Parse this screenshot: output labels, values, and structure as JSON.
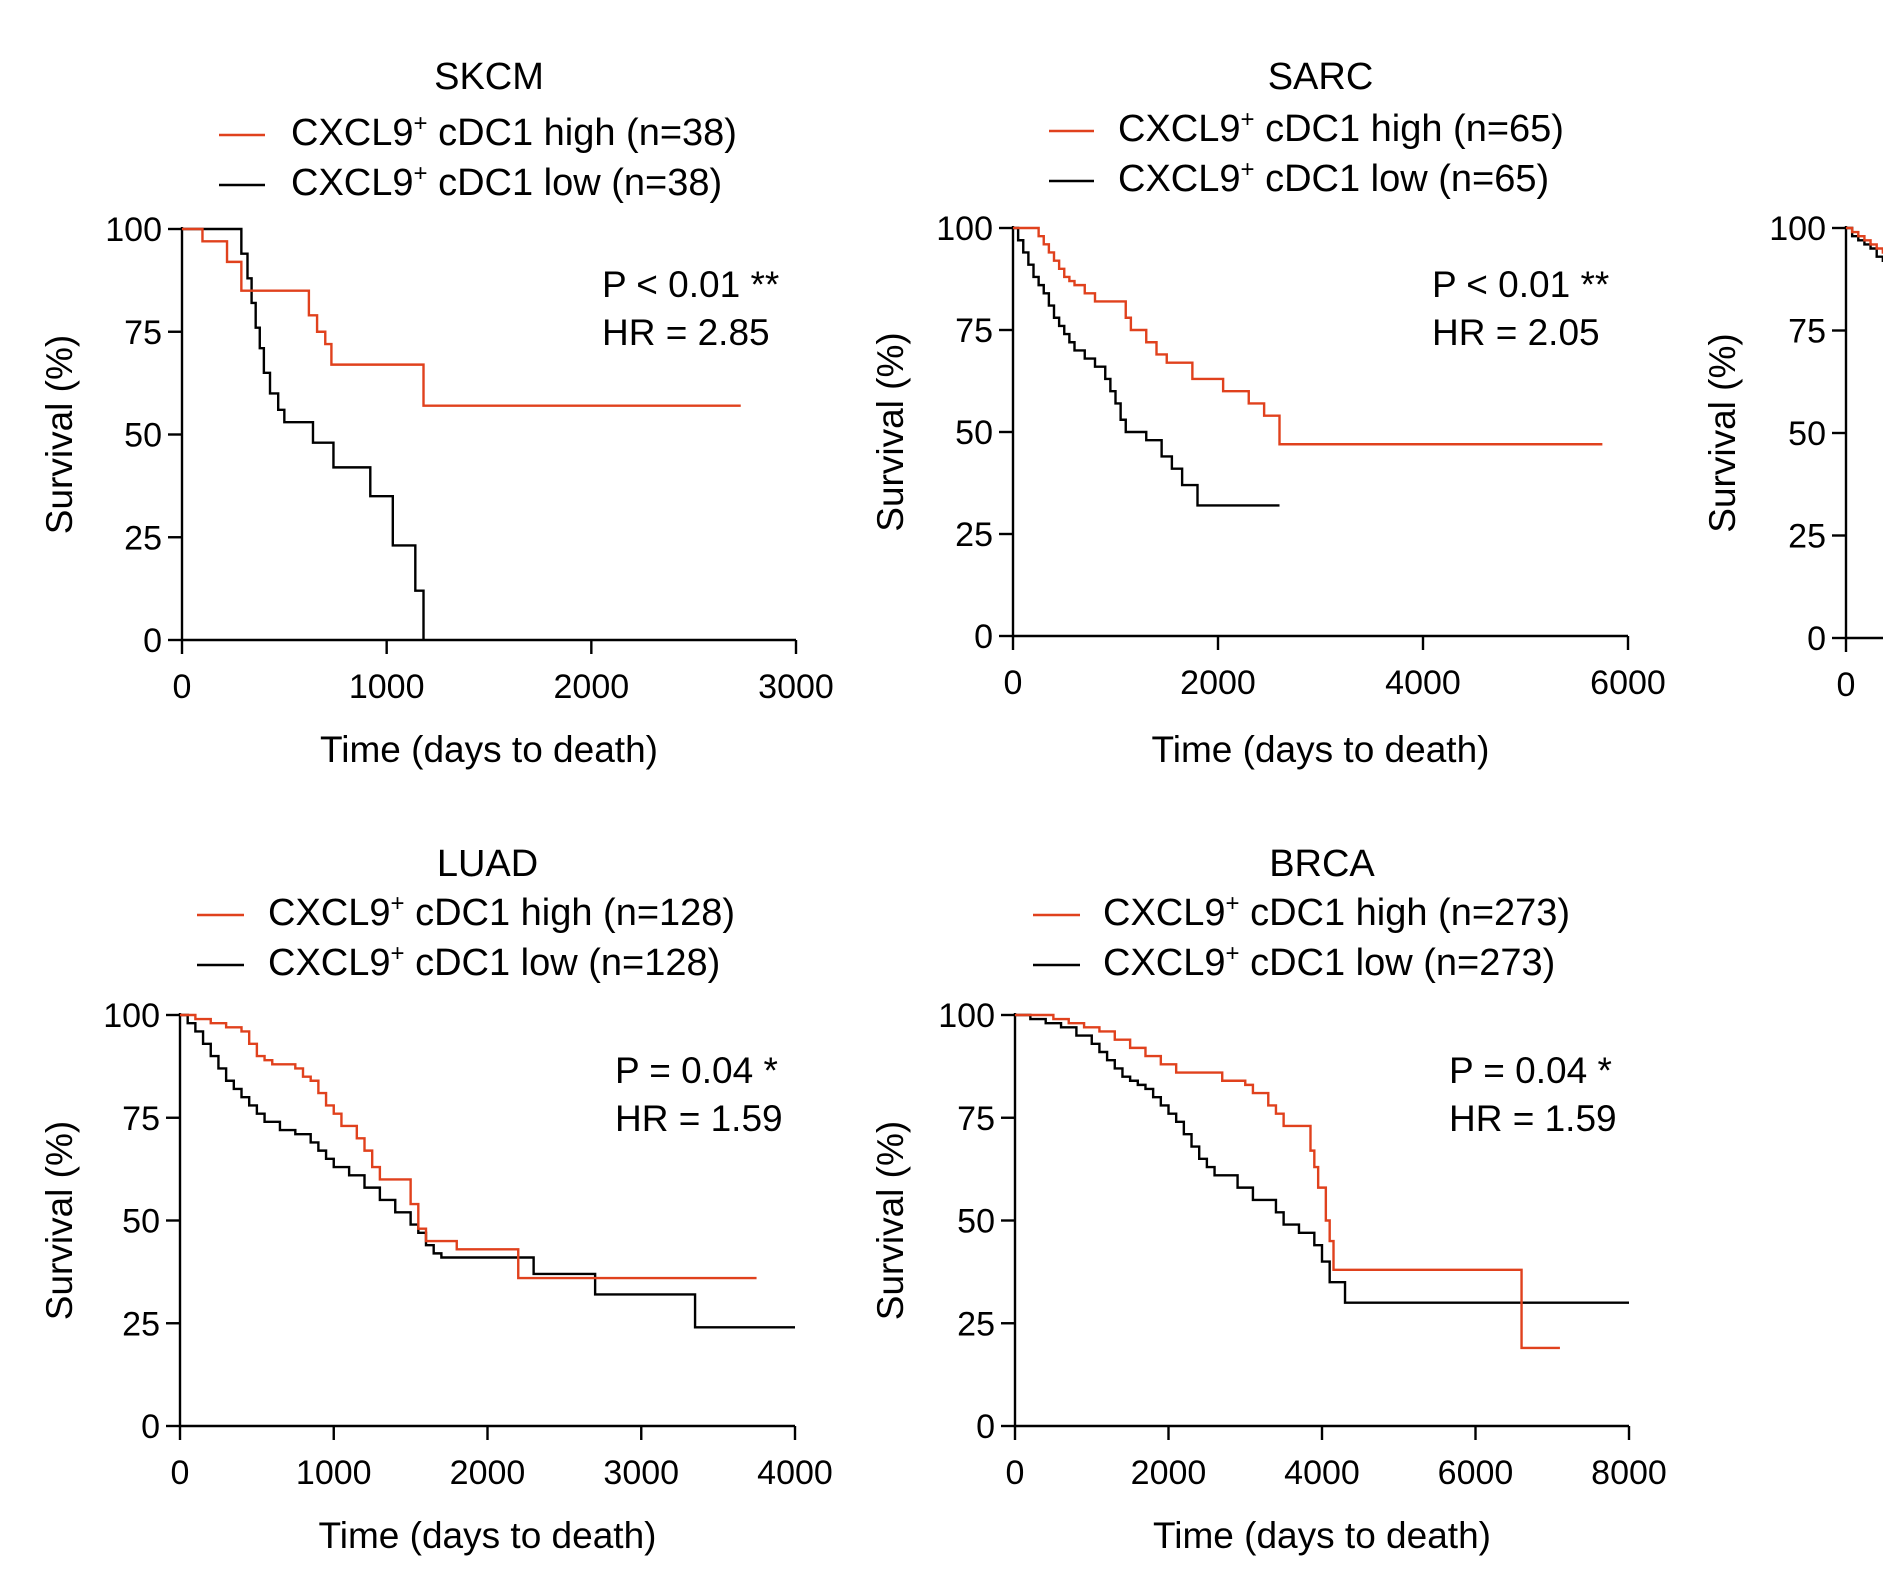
{
  "colors": {
    "high": "#e0411d",
    "low": "#000000",
    "axis": "#000000"
  },
  "chart_data": [
    {
      "type": "line",
      "title": "SKCM",
      "xlabel": "Time (days to death)",
      "ylabel": "Survival (%)",
      "xlim": [
        0,
        3000
      ],
      "ylim": [
        0,
        100
      ],
      "xticks": [
        0,
        1000,
        2000,
        3000
      ],
      "yticks": [
        0,
        25,
        50,
        75,
        100
      ],
      "stat_line1": "P < 0.01 **",
      "stat_line2": "HR = 2.85",
      "series": [
        {
          "key": "high",
          "name": "CXCL9+ cDC1 high (n=38)",
          "name_prefix": "CXCL9",
          "name_sup": "+",
          "name_suffix": " cDC1 high (n=38)",
          "steps": [
            [
              0,
              100
            ],
            [
              100,
              97
            ],
            [
              220,
              92
            ],
            [
              290,
              85
            ],
            [
              580,
              85
            ],
            [
              620,
              79
            ],
            [
              660,
              75
            ],
            [
              700,
              72
            ],
            [
              730,
              67
            ],
            [
              1180,
              67
            ],
            [
              1180,
              57
            ],
            [
              2730,
              57
            ]
          ]
        },
        {
          "key": "low",
          "name": "CXCL9+ cDC1 low (n=38)",
          "name_prefix": "CXCL9",
          "name_sup": "+",
          "name_suffix": " cDC1 low (n=38)",
          "steps": [
            [
              0,
              100
            ],
            [
              270,
              100
            ],
            [
              290,
              94
            ],
            [
              320,
              88
            ],
            [
              340,
              82
            ],
            [
              360,
              76
            ],
            [
              380,
              71
            ],
            [
              400,
              65
            ],
            [
              430,
              60
            ],
            [
              470,
              56
            ],
            [
              500,
              53
            ],
            [
              640,
              48
            ],
            [
              740,
              42
            ],
            [
              920,
              35
            ],
            [
              1030,
              23
            ],
            [
              1140,
              12
            ],
            [
              1180,
              0
            ]
          ]
        }
      ]
    },
    {
      "type": "line",
      "title": "SARC",
      "xlabel": "Time (days to death)",
      "ylabel": "Survival (%)",
      "xlim": [
        0,
        6000
      ],
      "ylim": [
        0,
        100
      ],
      "xticks": [
        0,
        2000,
        4000,
        6000
      ],
      "yticks": [
        0,
        25,
        50,
        75,
        100
      ],
      "stat_line1": "P < 0.01 **",
      "stat_line2": "HR = 2.05",
      "series": [
        {
          "key": "high",
          "name": "CXCL9+ cDC1 high (n=65)",
          "name_prefix": "CXCL9",
          "name_sup": "+",
          "name_suffix": " cDC1 high (n=65)",
          "steps": [
            [
              0,
              100
            ],
            [
              200,
              100
            ],
            [
              250,
              98
            ],
            [
              300,
              96
            ],
            [
              350,
              94
            ],
            [
              400,
              92
            ],
            [
              450,
              90
            ],
            [
              500,
              88
            ],
            [
              550,
              87
            ],
            [
              600,
              86
            ],
            [
              700,
              84
            ],
            [
              800,
              82
            ],
            [
              1050,
              82
            ],
            [
              1100,
              78
            ],
            [
              1150,
              75
            ],
            [
              1300,
              72
            ],
            [
              1400,
              69
            ],
            [
              1500,
              67
            ],
            [
              1750,
              63
            ],
            [
              2050,
              60
            ],
            [
              2300,
              57
            ],
            [
              2450,
              54
            ],
            [
              2600,
              54
            ],
            [
              2600,
              47
            ],
            [
              5750,
              47
            ]
          ]
        },
        {
          "key": "low",
          "name": "CXCL9+ cDC1 low (n=65)",
          "name_prefix": "CXCL9",
          "name_sup": "+",
          "name_suffix": " cDC1 low (n=65)",
          "steps": [
            [
              0,
              100
            ],
            [
              50,
              97
            ],
            [
              100,
              94
            ],
            [
              150,
              91
            ],
            [
              200,
              88
            ],
            [
              250,
              86
            ],
            [
              300,
              84
            ],
            [
              350,
              81
            ],
            [
              400,
              78
            ],
            [
              450,
              76
            ],
            [
              500,
              74
            ],
            [
              550,
              72
            ],
            [
              600,
              70
            ],
            [
              700,
              68
            ],
            [
              800,
              66
            ],
            [
              900,
              63
            ],
            [
              950,
              60
            ],
            [
              1000,
              57
            ],
            [
              1050,
              53
            ],
            [
              1100,
              50
            ],
            [
              1300,
              48
            ],
            [
              1450,
              44
            ],
            [
              1550,
              41
            ],
            [
              1650,
              37
            ],
            [
              1800,
              32
            ],
            [
              2600,
              32
            ]
          ]
        }
      ]
    },
    {
      "type": "line",
      "title": "LUAD",
      "xlabel": "Time (days to death)",
      "ylabel": "Survival (%)",
      "xlim": [
        0,
        4000
      ],
      "ylim": [
        0,
        100
      ],
      "xticks": [
        0,
        1000,
        2000,
        3000,
        4000
      ],
      "yticks": [
        0,
        25,
        50,
        75,
        100
      ],
      "stat_line1": "P = 0.04 *",
      "stat_line2": "HR = 1.59",
      "series": [
        {
          "key": "high",
          "name": "CXCL9+ cDC1 high (n=128)",
          "name_prefix": "CXCL9",
          "name_sup": "+",
          "name_suffix": " cDC1 high (n=128)",
          "steps": [
            [
              0,
              100
            ],
            [
              100,
              99
            ],
            [
              200,
              98
            ],
            [
              300,
              97
            ],
            [
              400,
              96
            ],
            [
              450,
              93
            ],
            [
              500,
              90
            ],
            [
              550,
              89
            ],
            [
              600,
              88
            ],
            [
              750,
              87
            ],
            [
              800,
              85
            ],
            [
              850,
              84
            ],
            [
              900,
              81
            ],
            [
              950,
              78
            ],
            [
              1000,
              76
            ],
            [
              1050,
              73
            ],
            [
              1150,
              70
            ],
            [
              1200,
              67
            ],
            [
              1250,
              63
            ],
            [
              1300,
              60
            ],
            [
              1500,
              54
            ],
            [
              1550,
              48
            ],
            [
              1600,
              45
            ],
            [
              1800,
              43
            ],
            [
              2150,
              43
            ],
            [
              2200,
              36
            ],
            [
              3750,
              36
            ]
          ]
        },
        {
          "key": "low",
          "name": "CXCL9+ cDC1 low (n=128)",
          "name_prefix": "CXCL9",
          "name_sup": "+",
          "name_suffix": " cDC1 low (n=128)",
          "steps": [
            [
              0,
              100
            ],
            [
              50,
              98
            ],
            [
              100,
              96
            ],
            [
              150,
              93
            ],
            [
              200,
              90
            ],
            [
              250,
              87
            ],
            [
              300,
              84
            ],
            [
              350,
              82
            ],
            [
              400,
              80
            ],
            [
              450,
              78
            ],
            [
              500,
              76
            ],
            [
              550,
              74
            ],
            [
              650,
              72
            ],
            [
              750,
              71
            ],
            [
              850,
              69
            ],
            [
              900,
              67
            ],
            [
              950,
              65
            ],
            [
              1000,
              63
            ],
            [
              1100,
              61
            ],
            [
              1200,
              58
            ],
            [
              1300,
              55
            ],
            [
              1400,
              52
            ],
            [
              1500,
              49
            ],
            [
              1550,
              47
            ],
            [
              1600,
              44
            ],
            [
              1650,
              42
            ],
            [
              1700,
              41
            ],
            [
              2150,
              41
            ],
            [
              2300,
              37
            ],
            [
              2700,
              37
            ],
            [
              2700,
              32
            ],
            [
              3350,
              32
            ],
            [
              3350,
              24
            ],
            [
              4000,
              24
            ]
          ]
        }
      ]
    },
    {
      "type": "line",
      "title": "BRCA",
      "xlabel": "Time (days to death)",
      "ylabel": "Survival (%)",
      "xlim": [
        0,
        8000
      ],
      "ylim": [
        0,
        100
      ],
      "xticks": [
        0,
        2000,
        4000,
        6000,
        8000
      ],
      "yticks": [
        0,
        25,
        50,
        75,
        100
      ],
      "stat_line1": "P = 0.04 *",
      "stat_line2": "HR = 1.59",
      "series": [
        {
          "key": "high",
          "name": "CXCL9+ cDC1 high (n=273)",
          "name_prefix": "CXCL9",
          "name_sup": "+",
          "name_suffix": " cDC1 high (n=273)",
          "steps": [
            [
              0,
              100
            ],
            [
              300,
              100
            ],
            [
              500,
              99
            ],
            [
              700,
              98
            ],
            [
              900,
              97
            ],
            [
              1100,
              96
            ],
            [
              1300,
              94
            ],
            [
              1500,
              92
            ],
            [
              1700,
              90
            ],
            [
              1900,
              88
            ],
            [
              2100,
              86
            ],
            [
              2600,
              86
            ],
            [
              2700,
              84
            ],
            [
              3000,
              83
            ],
            [
              3100,
              81
            ],
            [
              3300,
              78
            ],
            [
              3400,
              76
            ],
            [
              3500,
              73
            ],
            [
              3800,
              73
            ],
            [
              3850,
              67
            ],
            [
              3900,
              63
            ],
            [
              3950,
              58
            ],
            [
              4050,
              50
            ],
            [
              4100,
              45
            ],
            [
              4150,
              38
            ],
            [
              6600,
              38
            ],
            [
              6600,
              19
            ],
            [
              7100,
              19
            ]
          ]
        },
        {
          "key": "low",
          "name": "CXCL9+ cDC1 low (n=273)",
          "name_prefix": "CXCL9",
          "name_sup": "+",
          "name_suffix": " cDC1 low (n=273)",
          "steps": [
            [
              0,
              100
            ],
            [
              200,
              99
            ],
            [
              400,
              98
            ],
            [
              600,
              97
            ],
            [
              800,
              95
            ],
            [
              1000,
              93
            ],
            [
              1100,
              91
            ],
            [
              1200,
              89
            ],
            [
              1300,
              87
            ],
            [
              1400,
              85
            ],
            [
              1500,
              84
            ],
            [
              1600,
              83
            ],
            [
              1700,
              82
            ],
            [
              1800,
              80
            ],
            [
              1900,
              78
            ],
            [
              2000,
              76
            ],
            [
              2100,
              74
            ],
            [
              2200,
              71
            ],
            [
              2300,
              68
            ],
            [
              2400,
              65
            ],
            [
              2500,
              63
            ],
            [
              2600,
              61
            ],
            [
              2900,
              58
            ],
            [
              3100,
              55
            ],
            [
              3400,
              52
            ],
            [
              3500,
              49
            ],
            [
              3700,
              47
            ],
            [
              3900,
              44
            ],
            [
              4000,
              40
            ],
            [
              4100,
              35
            ],
            [
              4300,
              30
            ],
            [
              8000,
              30
            ]
          ]
        }
      ]
    },
    {
      "type": "line",
      "title": "",
      "xlabel": "",
      "ylabel": "Survival (%)",
      "xlim": [
        0,
        1000
      ],
      "ylim": [
        0,
        100
      ],
      "xticks": [
        0
      ],
      "yticks": [
        0,
        25,
        50,
        75,
        100
      ],
      "stat_line1": "",
      "stat_line2": "",
      "series": [
        {
          "key": "high",
          "name": "",
          "name_prefix": "",
          "name_sup": "",
          "name_suffix": "",
          "steps": [
            [
              0,
              100
            ],
            [
              10,
              99
            ],
            [
              20,
              98
            ],
            [
              30,
              97
            ],
            [
              40,
              96
            ],
            [
              50,
              95
            ],
            [
              60,
              94
            ],
            [
              70,
              92
            ]
          ]
        },
        {
          "key": "low",
          "name": "",
          "name_prefix": "",
          "name_sup": "",
          "name_suffix": "",
          "steps": [
            [
              0,
              100
            ],
            [
              10,
              98
            ],
            [
              20,
              97
            ],
            [
              30,
              96
            ],
            [
              40,
              95
            ],
            [
              50,
              93
            ],
            [
              60,
              92
            ],
            [
              70,
              91
            ],
            [
              80,
              89
            ]
          ]
        }
      ]
    }
  ]
}
